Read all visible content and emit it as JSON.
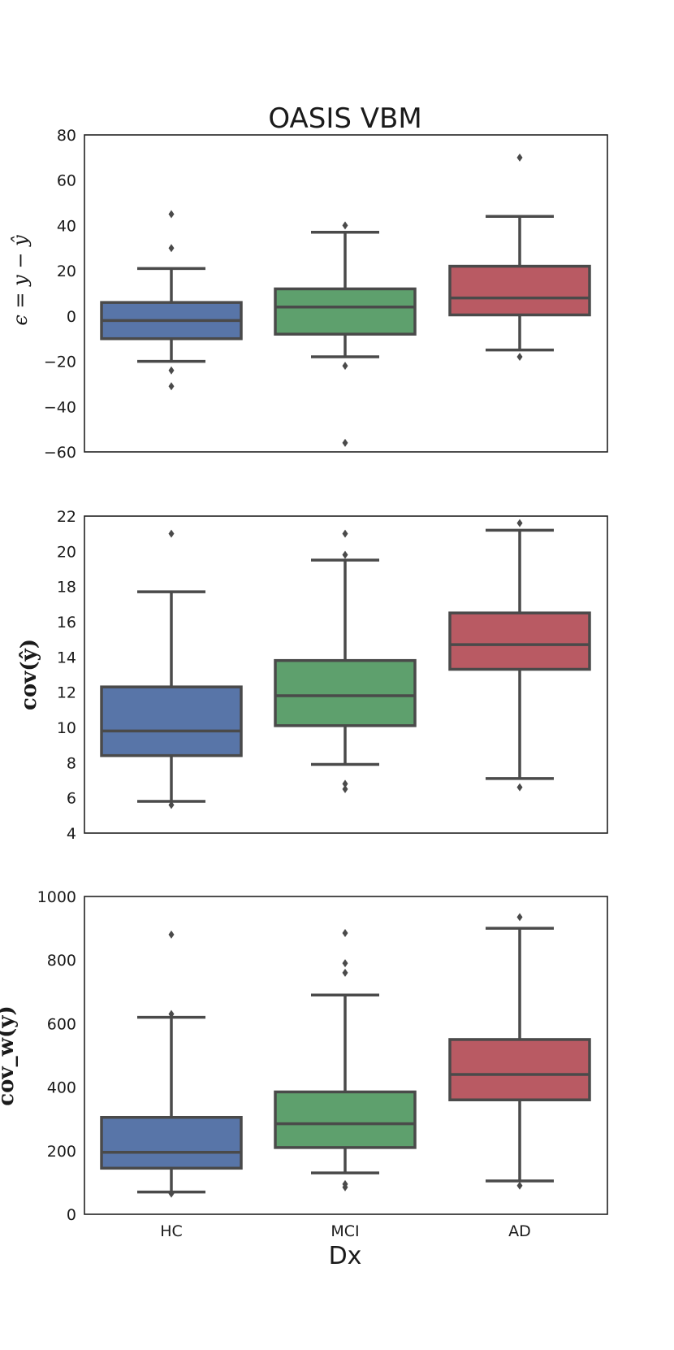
{
  "title": "OASIS VBM",
  "xlabel": "Dx",
  "categories": [
    "HC",
    "MCI",
    "AD"
  ],
  "colors": {
    "HC": "#5875a8",
    "MCI": "#5ea06d",
    "AD": "#b95a63",
    "line": "#4a4a4a",
    "axes": "#222222"
  },
  "chart_data": [
    {
      "type": "box",
      "ylabel": "ϵ = y − ŷ",
      "ylim": [
        -60,
        80
      ],
      "yticks": [
        -60,
        -40,
        -20,
        0,
        20,
        40,
        60,
        80
      ],
      "ytick_labels": [
        "−60",
        "−40",
        "−20",
        "0",
        "20",
        "40",
        "60",
        "80"
      ],
      "categories": [
        "HC",
        "MCI",
        "AD"
      ],
      "boxes": [
        {
          "category": "HC",
          "whisker_low": -20,
          "q1": -10,
          "median": -2,
          "q3": 6,
          "whisker_high": 21,
          "outliers": [
            45,
            30,
            -24,
            -31
          ]
        },
        {
          "category": "MCI",
          "whisker_low": -18,
          "q1": -8,
          "median": 4,
          "q3": 12,
          "whisker_high": 37,
          "outliers": [
            40,
            -22,
            -56
          ]
        },
        {
          "category": "AD",
          "whisker_low": -15,
          "q1": 0.5,
          "median": 8,
          "q3": 22,
          "whisker_high": 44,
          "outliers": [
            70,
            -18
          ]
        }
      ]
    },
    {
      "type": "box",
      "ylabel": "cov(ŷ)",
      "ylim": [
        4,
        22
      ],
      "yticks": [
        4,
        6,
        8,
        10,
        12,
        14,
        16,
        18,
        20,
        22
      ],
      "ytick_labels": [
        "4",
        "6",
        "8",
        "10",
        "12",
        "14",
        "16",
        "18",
        "20",
        "22"
      ],
      "categories": [
        "HC",
        "MCI",
        "AD"
      ],
      "boxes": [
        {
          "category": "HC",
          "whisker_low": 5.8,
          "q1": 8.4,
          "median": 9.8,
          "q3": 12.3,
          "whisker_high": 17.7,
          "outliers": [
            21.0,
            5.6
          ]
        },
        {
          "category": "MCI",
          "whisker_low": 7.9,
          "q1": 10.1,
          "median": 11.8,
          "q3": 13.8,
          "whisker_high": 19.5,
          "outliers": [
            21.0,
            19.8,
            6.8,
            6.5
          ]
        },
        {
          "category": "AD",
          "whisker_low": 7.1,
          "q1": 13.3,
          "median": 14.7,
          "q3": 16.5,
          "whisker_high": 21.2,
          "outliers": [
            21.6,
            6.6
          ]
        }
      ]
    },
    {
      "type": "box",
      "ylabel": "cov_w(ŷ)",
      "ylim": [
        0,
        1000
      ],
      "yticks": [
        0,
        200,
        400,
        600,
        800,
        1000
      ],
      "ytick_labels": [
        "0",
        "200",
        "400",
        "600",
        "800",
        "1000"
      ],
      "categories": [
        "HC",
        "MCI",
        "AD"
      ],
      "boxes": [
        {
          "category": "HC",
          "whisker_low": 70,
          "q1": 145,
          "median": 195,
          "q3": 305,
          "whisker_high": 620,
          "outliers": [
            880,
            630,
            65
          ]
        },
        {
          "category": "MCI",
          "whisker_low": 130,
          "q1": 210,
          "median": 285,
          "q3": 385,
          "whisker_high": 690,
          "outliers": [
            885,
            790,
            760,
            95,
            85
          ]
        },
        {
          "category": "AD",
          "whisker_low": 105,
          "q1": 360,
          "median": 440,
          "q3": 550,
          "whisker_high": 900,
          "outliers": [
            935,
            90
          ]
        }
      ]
    }
  ]
}
